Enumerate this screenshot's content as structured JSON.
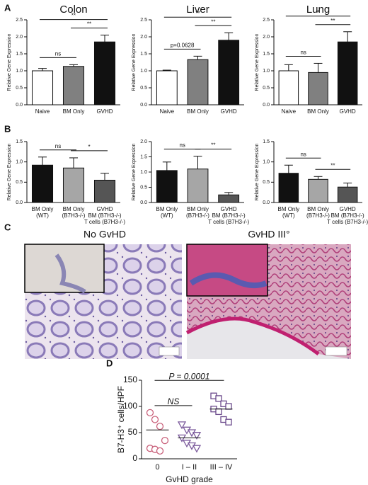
{
  "panel_labels": [
    "A",
    "B",
    "C",
    "D"
  ],
  "images": [
    {
      "title": "No GvHD"
    },
    {
      "title": "GvHD III°"
    }
  ],
  "chart_data": [
    {
      "type": "bar",
      "title": "Colon",
      "y_label": "Relative Gene Expression",
      "categories": [
        [
          "Naive"
        ],
        [
          "BM Only"
        ],
        [
          "GVHD"
        ]
      ],
      "colors": [
        "#ffffff",
        "#808080",
        "#111111"
      ],
      "values": [
        1.0,
        1.13,
        1.85
      ],
      "errors": [
        0.07,
        0.05,
        0.2
      ],
      "ylim": [
        0,
        2.5
      ],
      "yticks": [
        {
          "value": 0,
          "label": "0.0"
        },
        {
          "value": 0.5,
          "label": "0.5"
        },
        {
          "value": 1,
          "label": "1.0"
        },
        {
          "value": 1.5,
          "label": "1.5"
        },
        {
          "value": 2,
          "label": "2.0"
        },
        {
          "value": 2.5,
          "label": "2.5"
        }
      ],
      "annotations": [
        {
          "text": "ns",
          "from": 0,
          "to": 1
        },
        {
          "text": "**",
          "from": 1,
          "to": 2
        },
        {
          "text": "**",
          "from": 0,
          "to": 2
        }
      ]
    },
    {
      "type": "bar",
      "title": "Liver",
      "y_label": "Relative Gene Expression",
      "categories": [
        [
          "Naive"
        ],
        [
          "BM Only"
        ],
        [
          "GVHD"
        ]
      ],
      "colors": [
        "#ffffff",
        "#808080",
        "#111111"
      ],
      "values": [
        1.0,
        1.33,
        1.9
      ],
      "errors": [
        0.02,
        0.1,
        0.22
      ],
      "ylim": [
        0,
        2.5
      ],
      "yticks": [
        {
          "value": 0,
          "label": "0.0"
        },
        {
          "value": 0.5,
          "label": "0.5"
        },
        {
          "value": 1,
          "label": "1.0"
        },
        {
          "value": 1.5,
          "label": "1.5"
        },
        {
          "value": 2,
          "label": "2.0"
        },
        {
          "value": 2.5,
          "label": "2.5"
        }
      ],
      "annotations": [
        {
          "text": "p=0.0628",
          "from": 0,
          "to": 1
        },
        {
          "text": "**",
          "from": 1,
          "to": 2
        },
        {
          "text": "**",
          "from": 0,
          "to": 2
        }
      ]
    },
    {
      "type": "bar",
      "title": "Lung",
      "y_label": "Relative Gene Expression",
      "categories": [
        [
          "Naive"
        ],
        [
          "BM Only"
        ],
        [
          "GVHD"
        ]
      ],
      "colors": [
        "#ffffff",
        "#808080",
        "#111111"
      ],
      "values": [
        1.0,
        0.95,
        1.85
      ],
      "errors": [
        0.18,
        0.27,
        0.3
      ],
      "ylim": [
        0,
        2.5
      ],
      "yticks": [
        {
          "value": 0,
          "label": "0.0"
        },
        {
          "value": 0.5,
          "label": "0.5"
        },
        {
          "value": 1,
          "label": "1.0"
        },
        {
          "value": 1.5,
          "label": "1.5"
        },
        {
          "value": 2,
          "label": "2.0"
        },
        {
          "value": 2.5,
          "label": "2.5"
        }
      ],
      "annotations": [
        {
          "text": "ns",
          "from": 0,
          "to": 1
        },
        {
          "text": "**",
          "from": 1,
          "to": 2
        },
        {
          "text": "*",
          "from": 0,
          "to": 2
        }
      ]
    },
    {
      "type": "bar",
      "y_label": "Relative Gene Expression",
      "categories": [
        [
          "BM Only",
          "(WT)"
        ],
        [
          "BM Only",
          "(B7H3-/-)"
        ],
        [
          "GVHD",
          "BM (B7H3-/-)",
          "T cells (B7H3-/-)"
        ]
      ],
      "colors": [
        "#111111",
        "#a6a6a6",
        "#555555"
      ],
      "values": [
        0.92,
        0.85,
        0.55
      ],
      "errors": [
        0.2,
        0.25,
        0.17
      ],
      "ylim": [
        0,
        1.5
      ],
      "yticks": [
        {
          "value": 0,
          "label": "0.0"
        },
        {
          "value": 0.5,
          "label": "0.5"
        },
        {
          "value": 1,
          "label": "1.0"
        },
        {
          "value": 1.5,
          "label": "1.5"
        }
      ],
      "annotations": [
        {
          "text": "ns",
          "from": 0,
          "to": 1
        },
        {
          "text": "*",
          "from": 1,
          "to": 2
        }
      ]
    },
    {
      "type": "bar",
      "y_label": "Relative Gene Expression",
      "categories": [
        [
          "BM Only",
          "(WT)"
        ],
        [
          "BM Only",
          "(B7H3-/-)"
        ],
        [
          "GVHD",
          "BM (B7H3-/-)",
          "T cells (B7H3-/-)"
        ]
      ],
      "colors": [
        "#111111",
        "#a6a6a6",
        "#555555"
      ],
      "values": [
        1.05,
        1.1,
        0.25
      ],
      "errors": [
        0.28,
        0.42,
        0.08
      ],
      "ylim": [
        0,
        2
      ],
      "yticks": [
        {
          "value": 0,
          "label": "0.0"
        },
        {
          "value": 0.5,
          "label": "0.5"
        },
        {
          "value": 1,
          "label": "1.0"
        },
        {
          "value": 1.5,
          "label": "1.5"
        },
        {
          "value": 2,
          "label": "2.0"
        }
      ],
      "annotations": [
        {
          "text": "ns",
          "from": 0,
          "to": 1
        },
        {
          "text": "**",
          "from": 1,
          "to": 2
        }
      ]
    },
    {
      "type": "bar",
      "y_label": "Relative Gene Expression",
      "categories": [
        [
          "BM Only",
          "(WT)"
        ],
        [
          "BM Only",
          "(B7H3-/-)"
        ],
        [
          "GVHD",
          "BM (B7H3-/-)",
          "T cells (B7H3-/-)"
        ]
      ],
      "colors": [
        "#111111",
        "#a6a6a6",
        "#555555"
      ],
      "values": [
        0.72,
        0.57,
        0.38
      ],
      "errors": [
        0.2,
        0.07,
        0.1
      ],
      "ylim": [
        0,
        1.5
      ],
      "yticks": [
        {
          "value": 0,
          "label": "0.0"
        },
        {
          "value": 0.5,
          "label": "0.5"
        },
        {
          "value": 1,
          "label": "1.0"
        },
        {
          "value": 1.5,
          "label": "1.5"
        }
      ],
      "annotations": [
        {
          "text": "ns",
          "from": 0,
          "to": 1
        },
        {
          "text": "**",
          "from": 1,
          "to": 2
        }
      ]
    },
    {
      "type": "dot",
      "y_label": "B7-H3⁺ cells/HPF",
      "x_label": "GvHD grade",
      "categories": [
        "0",
        "I – II",
        "III – IV"
      ],
      "groups": [
        {
          "marker": "circle",
          "color": "#c9607a",
          "values": [
            88,
            75,
            62,
            35,
            20,
            18,
            15
          ],
          "center": 55
        },
        {
          "marker": "triangle-down",
          "color": "#7b5a9c",
          "values": [
            65,
            55,
            50,
            45,
            40,
            30,
            25,
            20
          ],
          "center": 40
        },
        {
          "marker": "square",
          "color": "#6b4a8c",
          "values": [
            120,
            115,
            105,
            100,
            95,
            90,
            75,
            70
          ],
          "center": 95
        }
      ],
      "ylim": [
        0,
        150
      ],
      "yticks": [
        0,
        50,
        100,
        150
      ],
      "annotations": [
        {
          "text": "NS",
          "from": 0,
          "to": 1
        },
        {
          "text": "P = 0.0001",
          "from": 0,
          "to": 2
        }
      ]
    }
  ]
}
